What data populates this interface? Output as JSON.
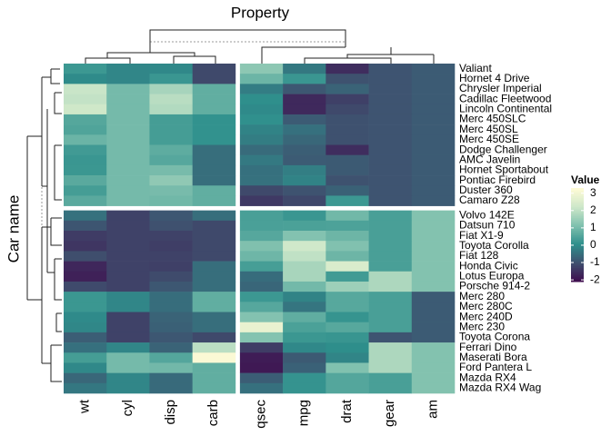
{
  "chart_data": {
    "type": "heatmap",
    "title": "Property",
    "y_label": "Car name",
    "legend_title": "Value",
    "legend_ticks": [
      3,
      2,
      1,
      0,
      -1,
      -2
    ],
    "clim": [
      -2.1,
      3.3
    ],
    "colors": [
      "#3f0a4d",
      "#3f4f6e",
      "#2e8f8c",
      "#7fc0ae",
      "#cde7c9",
      "#fffbd6"
    ],
    "column_groups": [
      [
        "wt",
        "cyl",
        "disp",
        "carb"
      ],
      [
        "qsec",
        "mpg",
        "drat",
        "gear",
        "am"
      ]
    ],
    "row_groups": [
      {
        "rows": [
          "Valiant",
          "Hornet 4 Drive",
          "Chrysler Imperial",
          "Cadillac Fleetwood",
          "Lincoln Continental",
          "Merc 450SLC",
          "Merc 450SL",
          "Merc 450SE",
          "Dodge Challenger",
          "AMC Javelin",
          "Hornet Sportabout",
          "Pontiac Firebird",
          "Duster 360",
          "Camaro Z28"
        ],
        "values": [
          [
            0.25,
            -0.1,
            -0.05,
            -1.12,
            1.33,
            -0.33,
            -1.56,
            -0.93,
            -0.81
          ],
          [
            0.0,
            -0.1,
            0.22,
            -1.12,
            0.89,
            0.22,
            -0.97,
            -0.93,
            -0.81
          ],
          [
            2.17,
            1.01,
            1.69,
            0.74,
            -0.24,
            -0.89,
            -0.69,
            -0.93,
            -0.81
          ],
          [
            2.08,
            1.01,
            1.95,
            0.74,
            0.07,
            -1.61,
            -1.25,
            -0.93,
            -0.81
          ],
          [
            2.26,
            1.01,
            1.85,
            0.74,
            -0.02,
            -1.61,
            -1.12,
            -0.93,
            -0.81
          ],
          [
            0.58,
            1.01,
            0.36,
            0.12,
            0.08,
            -0.81,
            -0.98,
            -0.93,
            -0.81
          ],
          [
            0.52,
            1.01,
            0.36,
            0.12,
            -0.14,
            -0.46,
            -0.98,
            -0.93,
            -0.81
          ],
          [
            0.87,
            1.01,
            0.36,
            0.12,
            -0.25,
            -0.61,
            -0.98,
            -0.93,
            -0.81
          ],
          [
            0.31,
            1.01,
            0.7,
            -0.5,
            -0.55,
            -0.76,
            -1.56,
            -0.93,
            -0.81
          ],
          [
            0.22,
            1.01,
            0.59,
            -0.5,
            -0.31,
            -0.81,
            -0.84,
            -0.93,
            -0.81
          ],
          [
            0.23,
            1.01,
            1.04,
            -0.5,
            -0.46,
            -0.23,
            -0.84,
            -0.93,
            -0.81
          ],
          [
            0.64,
            1.01,
            1.37,
            -0.5,
            -0.45,
            -0.15,
            -0.97,
            -0.93,
            -0.81
          ],
          [
            0.36,
            1.01,
            1.04,
            0.74,
            -1.12,
            -0.96,
            -0.72,
            -0.93,
            -0.81
          ],
          [
            0.64,
            1.01,
            0.96,
            0.74,
            -1.36,
            -1.13,
            0.25,
            -0.93,
            -0.81
          ]
        ]
      },
      {
        "rows": [
          "Volvo 142E",
          "Datsun 710",
          "Fiat X1-9",
          "Toyota Corolla",
          "Fiat 128",
          "Honda Civic",
          "Lotus Europa",
          "Porsche 914-2",
          "Merc 280",
          "Merc 280C",
          "Merc 240D",
          "Merc 230",
          "Toyota Corona",
          "Ferrari Dino",
          "Maserati Bora",
          "Ford Pantera L",
          "Mazda RX4",
          "Mazda RX4 Wag"
        ],
        "values": [
          [
            -0.45,
            -1.22,
            -0.89,
            -0.5,
            0.42,
            0.22,
            0.96,
            0.42,
            1.19
          ],
          [
            -0.92,
            -1.22,
            -0.99,
            -1.12,
            0.43,
            0.45,
            0.47,
            0.42,
            1.19
          ],
          [
            -1.31,
            -1.22,
            -1.22,
            -1.12,
            0.59,
            1.2,
            0.9,
            0.42,
            1.19
          ],
          [
            -1.41,
            -1.22,
            -1.29,
            -1.12,
            1.15,
            2.29,
            1.17,
            0.42,
            1.19
          ],
          [
            -1.04,
            -1.22,
            -1.23,
            -1.12,
            0.91,
            2.04,
            0.9,
            0.42,
            1.19
          ],
          [
            -1.64,
            -1.22,
            -1.25,
            -0.5,
            0.38,
            1.71,
            2.49,
            0.42,
            1.19
          ],
          [
            -1.74,
            -1.22,
            -1.09,
            -0.5,
            -0.53,
            1.71,
            0.32,
            1.78,
            1.19
          ],
          [
            -1.1,
            -1.22,
            -0.89,
            -0.5,
            -0.64,
            0.98,
            1.56,
            1.78,
            1.19
          ],
          [
            0.23,
            -0.1,
            -0.51,
            0.74,
            0.25,
            -0.15,
            0.6,
            0.42,
            -0.81
          ],
          [
            0.23,
            -0.1,
            -0.51,
            0.74,
            0.59,
            -0.38,
            0.6,
            0.42,
            -0.81
          ],
          [
            -0.03,
            -1.22,
            -0.68,
            -0.5,
            1.2,
            0.72,
            0.17,
            0.42,
            -0.81
          ],
          [
            -0.07,
            -1.22,
            -0.73,
            -0.5,
            2.83,
            0.45,
            0.6,
            0.42,
            -0.81
          ],
          [
            -0.77,
            -1.22,
            -0.89,
            -1.12,
            1.21,
            0.23,
            0.19,
            -0.93,
            -0.81
          ],
          [
            -0.46,
            -0.1,
            -0.69,
            1.97,
            -1.31,
            -0.06,
            0.04,
            1.78,
            1.19
          ],
          [
            0.36,
            1.01,
            0.57,
            3.21,
            -1.82,
            -0.84,
            -0.11,
            1.78,
            1.19
          ],
          [
            -0.05,
            1.01,
            0.97,
            0.74,
            -1.87,
            -0.71,
            1.17,
            1.78,
            1.19
          ],
          [
            -0.61,
            -0.1,
            -0.57,
            0.74,
            -0.78,
            0.15,
            0.57,
            0.42,
            1.19
          ],
          [
            -0.35,
            -0.1,
            -0.57,
            0.74,
            -0.46,
            0.15,
            0.57,
            0.42,
            1.19
          ]
        ]
      }
    ]
  }
}
